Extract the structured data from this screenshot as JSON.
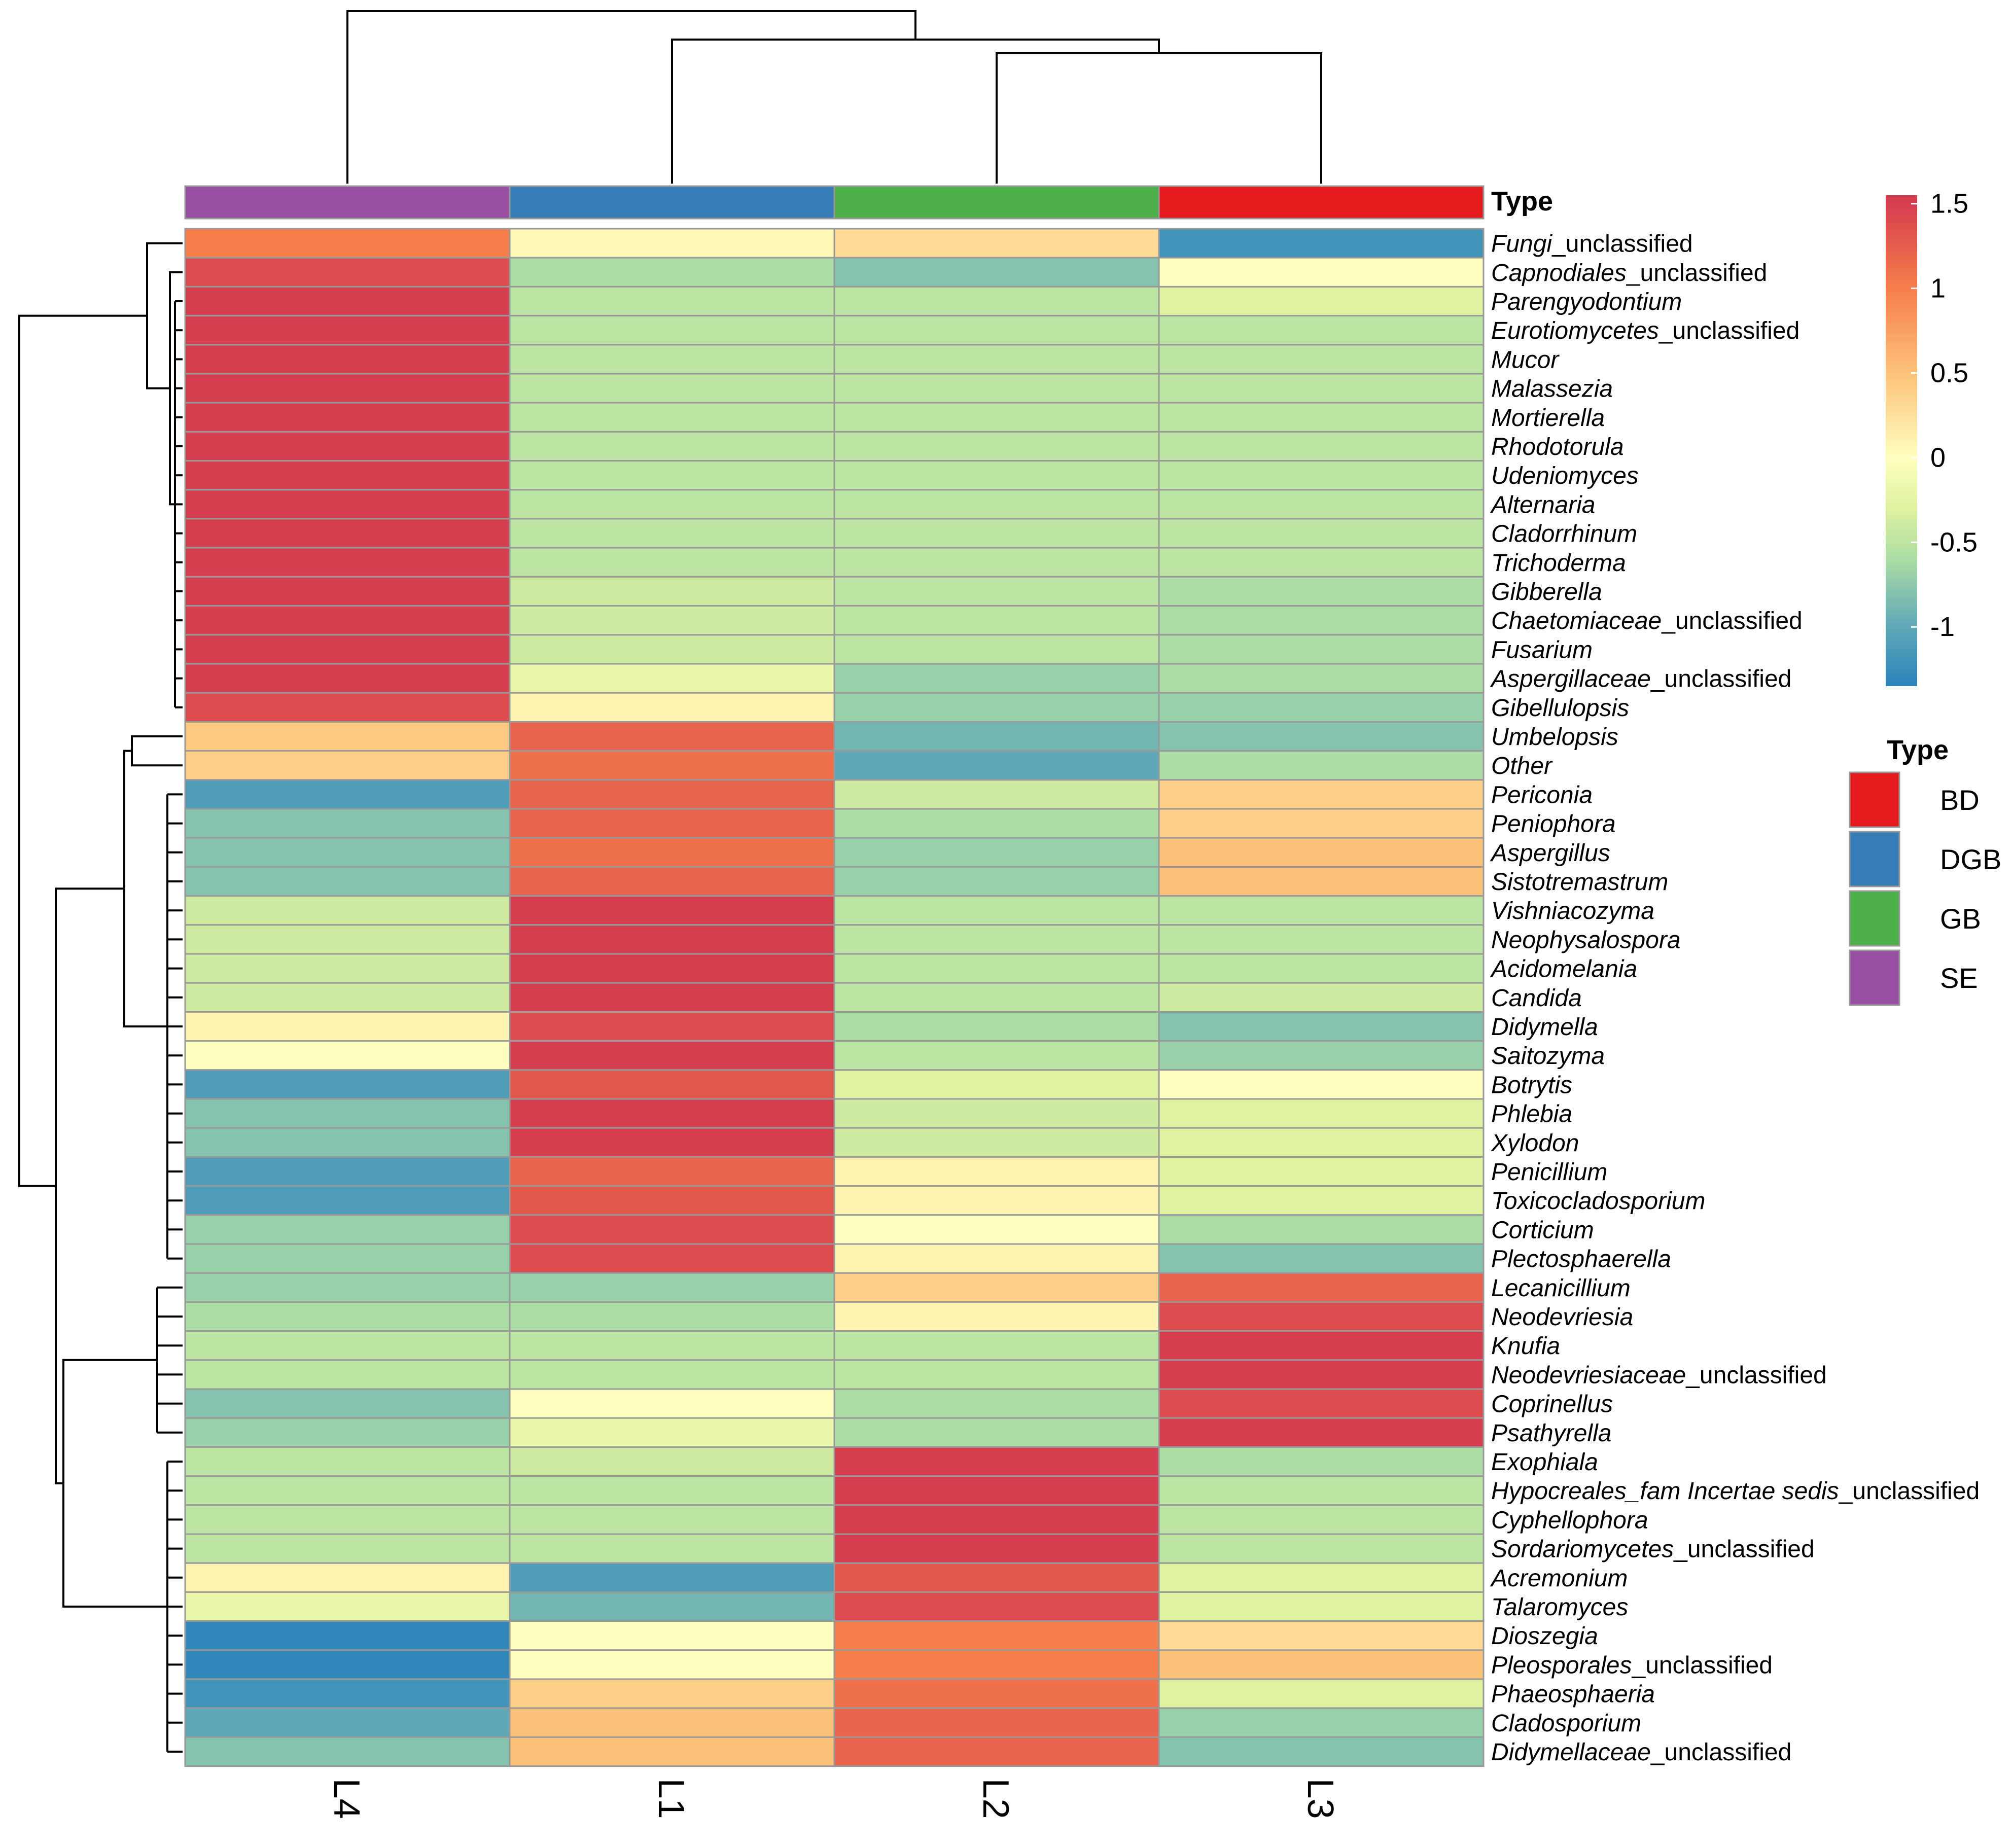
{
  "chart_data": {
    "type": "heatmap",
    "columns": [
      "L4",
      "L1",
      "L2",
      "L3"
    ],
    "column_types": [
      "SE",
      "DGB",
      "GB",
      "BD"
    ],
    "annotation_title": "Type",
    "rows": [
      {
        "name": "Fungi",
        "suffix": "_unclassified",
        "values": [
          1.0,
          0.05,
          0.3,
          -1.2
        ]
      },
      {
        "name": "Capnodiales",
        "suffix": "_unclassified",
        "values": [
          1.4,
          -0.6,
          -0.8,
          0.0
        ]
      },
      {
        "name": "Parengyodontium",
        "suffix": "",
        "values": [
          1.5,
          -0.5,
          -0.5,
          -0.3
        ]
      },
      {
        "name": "Eurotiomycetes",
        "suffix": "_unclassified",
        "values": [
          1.5,
          -0.5,
          -0.5,
          -0.5
        ]
      },
      {
        "name": "Mucor",
        "suffix": "",
        "values": [
          1.5,
          -0.5,
          -0.5,
          -0.5
        ]
      },
      {
        "name": "Malassezia",
        "suffix": "",
        "values": [
          1.5,
          -0.5,
          -0.5,
          -0.5
        ]
      },
      {
        "name": "Mortierella",
        "suffix": "",
        "values": [
          1.5,
          -0.5,
          -0.5,
          -0.5
        ]
      },
      {
        "name": "Rhodotorula",
        "suffix": "",
        "values": [
          1.5,
          -0.5,
          -0.5,
          -0.5
        ]
      },
      {
        "name": "Udeniomyces",
        "suffix": "",
        "values": [
          1.5,
          -0.5,
          -0.5,
          -0.5
        ]
      },
      {
        "name": "Alternaria",
        "suffix": "",
        "values": [
          1.5,
          -0.5,
          -0.5,
          -0.5
        ]
      },
      {
        "name": "Cladorrhinum",
        "suffix": "",
        "values": [
          1.5,
          -0.5,
          -0.5,
          -0.5
        ]
      },
      {
        "name": "Trichoderma",
        "suffix": "",
        "values": [
          1.5,
          -0.5,
          -0.5,
          -0.5
        ]
      },
      {
        "name": "Gibberella",
        "suffix": "",
        "values": [
          1.5,
          -0.4,
          -0.5,
          -0.6
        ]
      },
      {
        "name": "Chaetomiaceae",
        "suffix": "_unclassified",
        "values": [
          1.5,
          -0.4,
          -0.5,
          -0.6
        ]
      },
      {
        "name": "Fusarium",
        "suffix": "",
        "values": [
          1.5,
          -0.4,
          -0.5,
          -0.6
        ]
      },
      {
        "name": "Aspergillaceae",
        "suffix": "_unclassified",
        "values": [
          1.5,
          -0.2,
          -0.7,
          -0.6
        ]
      },
      {
        "name": "Gibellulopsis",
        "suffix": "",
        "values": [
          1.4,
          0.1,
          -0.7,
          -0.7
        ]
      },
      {
        "name": "Umbelopsis",
        "suffix": "",
        "values": [
          0.45,
          1.2,
          -0.9,
          -0.8
        ]
      },
      {
        "name": "Other",
        "suffix": "",
        "values": [
          0.4,
          1.1,
          -1.0,
          -0.6
        ]
      },
      {
        "name": "Periconia",
        "suffix": "",
        "values": [
          -1.1,
          1.2,
          -0.4,
          0.4
        ]
      },
      {
        "name": "Peniophora",
        "suffix": "",
        "values": [
          -0.8,
          1.2,
          -0.6,
          0.4
        ]
      },
      {
        "name": "Aspergillus",
        "suffix": "",
        "values": [
          -0.8,
          1.1,
          -0.7,
          0.5
        ]
      },
      {
        "name": "Sistotremastrum",
        "suffix": "",
        "values": [
          -0.8,
          1.2,
          -0.7,
          0.5
        ]
      },
      {
        "name": "Vishniacozyma",
        "suffix": "",
        "values": [
          -0.4,
          1.5,
          -0.5,
          -0.5
        ]
      },
      {
        "name": "Neophysalospora",
        "suffix": "",
        "values": [
          -0.4,
          1.5,
          -0.5,
          -0.5
        ]
      },
      {
        "name": "Acidomelania",
        "suffix": "",
        "values": [
          -0.4,
          1.5,
          -0.5,
          -0.5
        ]
      },
      {
        "name": "Candida",
        "suffix": "",
        "values": [
          -0.4,
          1.5,
          -0.5,
          -0.4
        ]
      },
      {
        "name": "Didymella",
        "suffix": "",
        "values": [
          0.1,
          1.4,
          -0.6,
          -0.8
        ]
      },
      {
        "name": "Saitozyma",
        "suffix": "",
        "values": [
          0.0,
          1.5,
          -0.5,
          -0.7
        ]
      },
      {
        "name": "Botrytis",
        "suffix": "",
        "values": [
          -1.1,
          1.3,
          -0.3,
          0.0
        ]
      },
      {
        "name": "Phlebia",
        "suffix": "",
        "values": [
          -0.8,
          1.5,
          -0.4,
          -0.3
        ]
      },
      {
        "name": "Xylodon",
        "suffix": "",
        "values": [
          -0.8,
          1.5,
          -0.4,
          -0.3
        ]
      },
      {
        "name": "Penicillium",
        "suffix": "",
        "values": [
          -1.1,
          1.2,
          0.1,
          -0.3
        ]
      },
      {
        "name": "Toxicocladosporium",
        "suffix": "",
        "values": [
          -1.1,
          1.3,
          0.1,
          -0.3
        ]
      },
      {
        "name": "Corticium",
        "suffix": "",
        "values": [
          -0.7,
          1.4,
          0.0,
          -0.6
        ]
      },
      {
        "name": "Plectosphaerella",
        "suffix": "",
        "values": [
          -0.7,
          1.4,
          0.1,
          -0.8
        ]
      },
      {
        "name": "Lecanicillium",
        "suffix": "",
        "values": [
          -0.7,
          -0.7,
          0.4,
          1.2
        ]
      },
      {
        "name": "Neodevriesia",
        "suffix": "",
        "values": [
          -0.6,
          -0.6,
          0.1,
          1.4
        ]
      },
      {
        "name": "Knufia",
        "suffix": "",
        "values": [
          -0.5,
          -0.5,
          -0.5,
          1.5
        ]
      },
      {
        "name": "Neodevriesiaceae",
        "suffix": "_unclassified",
        "values": [
          -0.5,
          -0.5,
          -0.5,
          1.5
        ]
      },
      {
        "name": "Coprinellus",
        "suffix": "",
        "values": [
          -0.8,
          0.0,
          -0.6,
          1.4
        ]
      },
      {
        "name": "Psathyrella",
        "suffix": "",
        "values": [
          -0.7,
          -0.2,
          -0.6,
          1.5
        ]
      },
      {
        "name": "Exophiala",
        "suffix": "",
        "values": [
          -0.5,
          -0.4,
          1.5,
          -0.6
        ]
      },
      {
        "name": "Hypocreales_fam Incertae sedis",
        "suffix": "_unclassified",
        "values": [
          -0.5,
          -0.5,
          1.5,
          -0.5
        ]
      },
      {
        "name": "Cyphellophora",
        "suffix": "",
        "values": [
          -0.5,
          -0.5,
          1.5,
          -0.5
        ]
      },
      {
        "name": "Sordariomycetes",
        "suffix": "_unclassified",
        "values": [
          -0.5,
          -0.5,
          1.5,
          -0.5
        ]
      },
      {
        "name": "Acremonium",
        "suffix": "",
        "values": [
          0.1,
          -1.1,
          1.3,
          -0.3
        ]
      },
      {
        "name": "Talaromyces",
        "suffix": "",
        "values": [
          -0.2,
          -0.9,
          1.4,
          -0.3
        ]
      },
      {
        "name": "Dioszegia",
        "suffix": "",
        "values": [
          -1.3,
          0.0,
          1.0,
          0.3
        ]
      },
      {
        "name": "Pleosporales",
        "suffix": "_unclassified",
        "values": [
          -1.3,
          0.0,
          1.0,
          0.5
        ]
      },
      {
        "name": "Phaeosphaeria",
        "suffix": "",
        "values": [
          -1.2,
          0.4,
          1.1,
          -0.3
        ]
      },
      {
        "name": "Cladosporium",
        "suffix": "",
        "values": [
          -1.0,
          0.5,
          1.2,
          -0.7
        ]
      },
      {
        "name": "Didymellaceae",
        "suffix": "_unclassified",
        "values": [
          -0.8,
          0.5,
          1.2,
          -0.8
        ]
      }
    ],
    "color_scale": {
      "min": -1.35,
      "max": 1.55,
      "ticks": [
        1.5,
        1,
        0.5,
        0,
        -0.5,
        -1
      ],
      "tick_labels": [
        "1.5",
        "1",
        "0.5",
        "0",
        "-0.5",
        "-1"
      ],
      "stops": [
        [
          -1.35,
          "#2b83ba"
        ],
        [
          -1.0,
          "#5fa8b8"
        ],
        [
          -0.6,
          "#abdda4"
        ],
        [
          -0.3,
          "#dff2a0"
        ],
        [
          0.0,
          "#ffffbf"
        ],
        [
          0.5,
          "#fdc27a"
        ],
        [
          1.0,
          "#f67e4b"
        ],
        [
          1.5,
          "#d53e4f"
        ]
      ]
    },
    "legend": {
      "title": "Type",
      "items": [
        {
          "label": "BD",
          "color": "#e41a1c"
        },
        {
          "label": "DGB",
          "color": "#377eb8"
        },
        {
          "label": "GB",
          "color": "#4daf4a"
        },
        {
          "label": "SE",
          "color": "#984ea3"
        }
      ]
    },
    "column_dendrogram": [
      [
        "L2",
        "L3"
      ],
      [
        "L1",
        [
          "L2",
          "L3"
        ]
      ],
      [
        "L4",
        [
          "L1",
          [
            "L2",
            "L3"
          ]
        ]
      ]
    ],
    "row_dendrogram_clusters": [
      "Fungi..Gibellulopsis",
      "Umbelopsis..Plectosphaerella",
      "Lecanicillium..Didymellaceae"
    ]
  }
}
